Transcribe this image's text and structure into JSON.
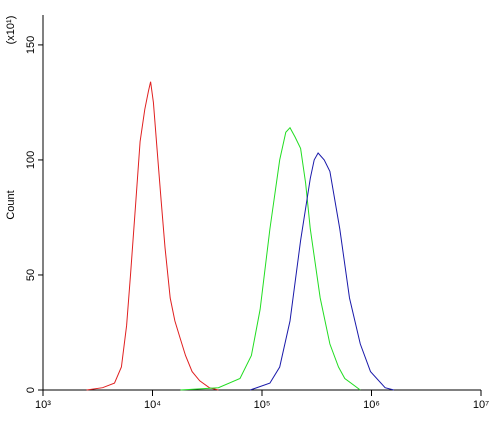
{
  "chart_data": {
    "type": "line",
    "ylabel": "Count",
    "y_multiplier": "(x10¹)",
    "xscale": "log",
    "xlim": [
      1000,
      10000000
    ],
    "xticks": [
      {
        "value": 1000,
        "label": "10³"
      },
      {
        "value": 10000,
        "label": "10⁴"
      },
      {
        "value": 100000,
        "label": "10⁵"
      },
      {
        "value": 1000000,
        "label": "10⁶"
      },
      {
        "value": 10000000,
        "label": "10⁷"
      }
    ],
    "ylim": [
      0,
      163
    ],
    "yticks": [
      0,
      50,
      100,
      150
    ],
    "series": [
      {
        "color": "#e02020",
        "x": [
          2500,
          3500,
          4500,
          5200,
          5800,
          6300,
          7000,
          7700,
          8500,
          9200,
          9600,
          10200,
          11000,
          12000,
          13000,
          14500,
          16000,
          18000,
          20000,
          23000,
          27000,
          33000,
          40000
        ],
        "values": [
          0,
          1,
          3,
          10,
          28,
          50,
          80,
          108,
          122,
          130,
          134,
          125,
          105,
          82,
          62,
          40,
          30,
          22,
          15,
          8,
          4,
          1,
          0
        ]
      },
      {
        "color": "#22dd22",
        "x": [
          18000,
          40000,
          63000,
          80000,
          96000,
          118000,
          145000,
          165000,
          180000,
          200000,
          225000,
          250000,
          276000,
          340000,
          417000,
          500000,
          570000,
          790000
        ],
        "values": [
          0,
          1,
          5,
          15,
          35,
          70,
          100,
          112,
          114,
          110,
          105,
          90,
          70,
          40,
          20,
          10,
          5,
          0
        ]
      },
      {
        "color": "#1a1aaa",
        "x": [
          78000,
          118000,
          145000,
          180000,
          225000,
          276000,
          300000,
          325000,
          370000,
          417000,
          513000,
          630000,
          790000,
          980000,
          1330000,
          1600000
        ],
        "values": [
          0,
          3,
          10,
          30,
          65,
          92,
          100,
          103,
          100,
          95,
          70,
          40,
          20,
          8,
          1,
          0
        ]
      }
    ]
  }
}
